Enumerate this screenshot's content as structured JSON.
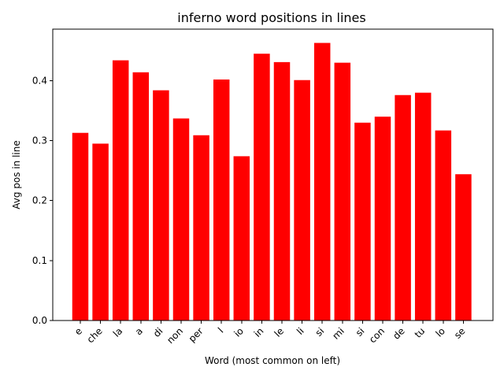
{
  "chart_data": {
    "type": "bar",
    "title": "inferno word positions in lines",
    "xlabel": "Word (most common on left)",
    "ylabel": "Avg pos in line",
    "categories": [
      "e",
      "che",
      "la",
      "a",
      "di",
      "non",
      "per",
      "l",
      "io",
      "in",
      "le",
      "li",
      "si",
      "mi",
      "si",
      "con",
      "de",
      "tu",
      "lo",
      "se"
    ],
    "values": [
      0.313,
      0.295,
      0.434,
      0.414,
      0.384,
      0.337,
      0.309,
      0.402,
      0.274,
      0.445,
      0.431,
      0.401,
      0.463,
      0.43,
      0.33,
      0.34,
      0.376,
      0.38,
      0.317,
      0.244
    ],
    "ylim": [
      0,
      0.486
    ],
    "yticks": [
      0.0,
      0.1,
      0.2,
      0.3,
      0.4
    ],
    "ytick_labels": [
      "0.0",
      "0.1",
      "0.2",
      "0.3",
      "0.4"
    ],
    "bar_color": "#ff0000",
    "grid": false,
    "legend": "none"
  }
}
